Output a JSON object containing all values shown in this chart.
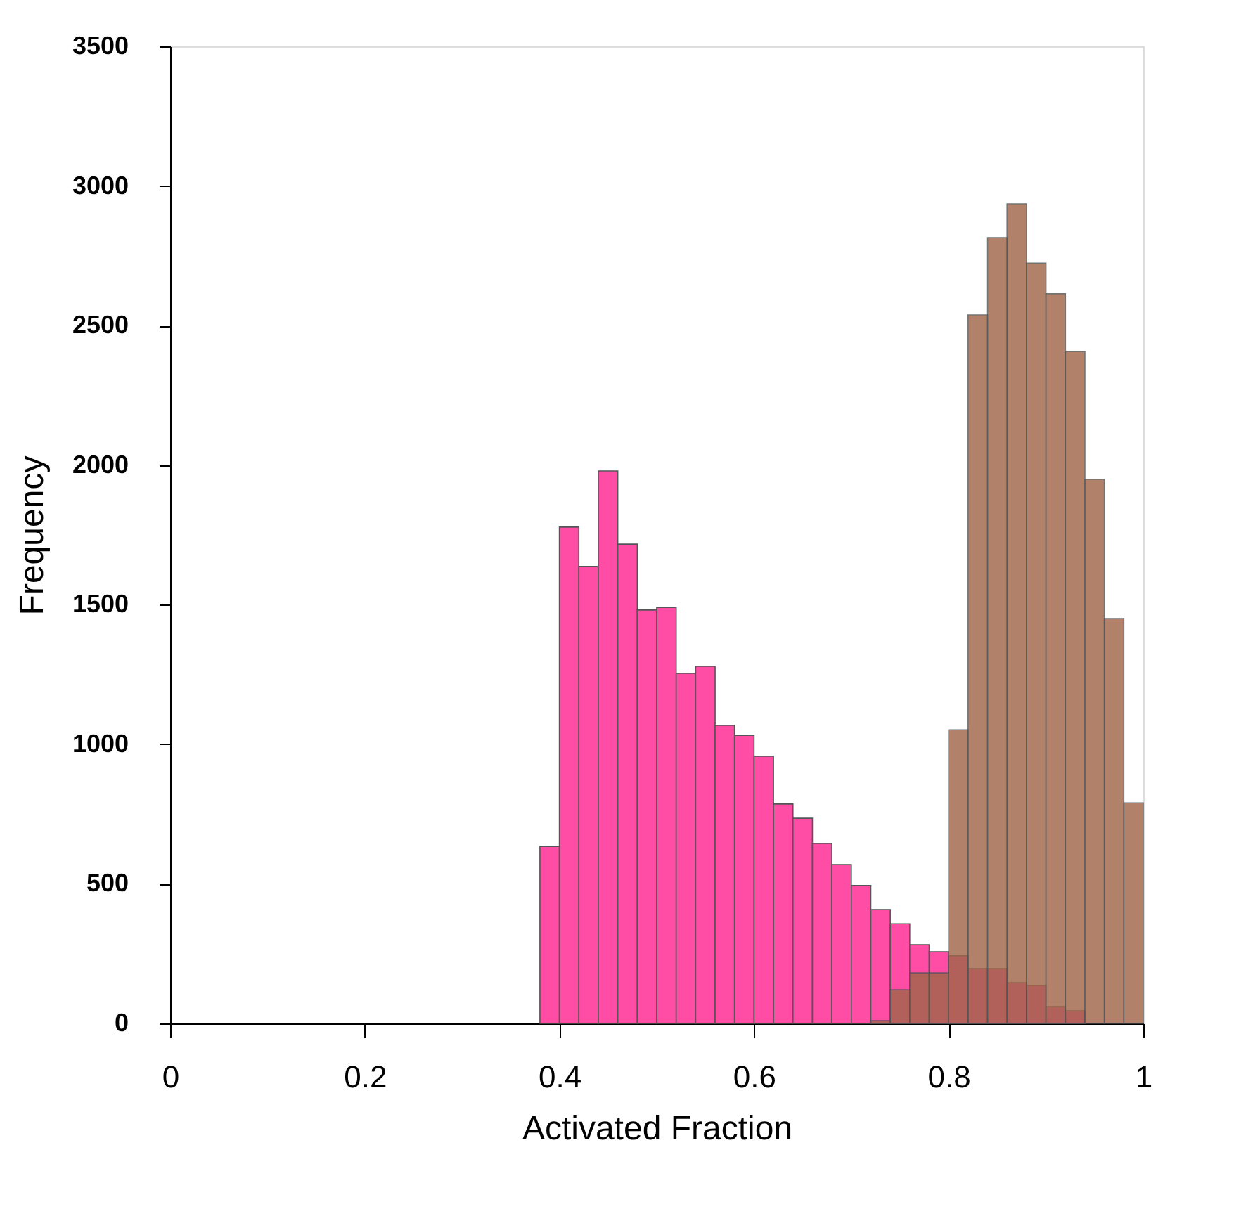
{
  "chart_data": {
    "type": "histogram",
    "xlabel": "Activated Fraction",
    "ylabel": "Frequency",
    "bins": [
      0.38,
      0.4,
      0.42,
      0.44,
      0.46,
      0.48,
      0.5,
      0.52,
      0.54,
      0.56,
      0.58,
      0.6,
      0.62,
      0.64,
      0.66,
      0.68,
      0.7,
      0.72,
      0.74,
      0.76,
      0.78,
      0.8,
      0.82,
      0.84,
      0.86,
      0.88,
      0.9,
      0.92,
      0.94,
      0.96,
      0.98,
      1.0
    ],
    "series": [
      {
        "color": "#ff4da6",
        "values": [
          634,
          1778,
          1637,
          1979,
          1717,
          1481,
          1490,
          1254,
          1279,
          1068,
          1032,
          957,
          786,
          735,
          645,
          569,
          494,
          408,
          357,
          282,
          257,
          242,
          196,
          196,
          146,
          136,
          60,
          45,
          null,
          null,
          null
        ]
      },
      {
        "color": "#a0664a",
        "values": [
          null,
          null,
          null,
          null,
          null,
          null,
          null,
          null,
          null,
          null,
          null,
          null,
          null,
          null,
          null,
          null,
          null,
          10,
          121,
          181,
          181,
          1052,
          2538,
          2815,
          2936,
          2724,
          2614,
          2407,
          1949,
          1450,
          790
        ]
      }
    ],
    "xlim": [
      0,
      1
    ],
    "xticks": [
      0,
      0.2,
      0.4,
      0.6,
      0.8,
      1
    ],
    "ylim": [
      0,
      3500
    ],
    "yticks": [
      0,
      500,
      1000,
      1500,
      2000,
      2500,
      3000,
      3500
    ],
    "grid": false
  }
}
